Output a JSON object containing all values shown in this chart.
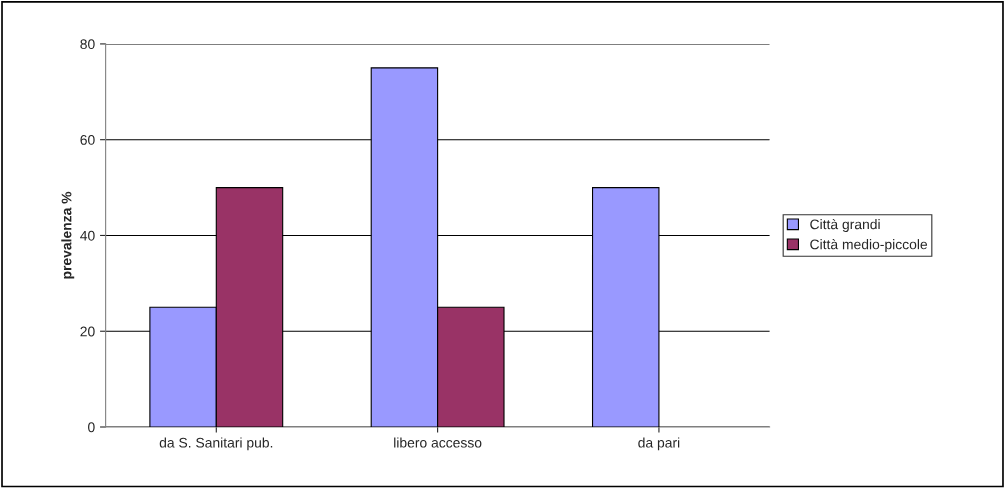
{
  "chart_data": {
    "type": "bar",
    "ylabel": "prevalenza %",
    "categories": [
      "da S. Sanitari pub.",
      "libero accesso",
      "da pari"
    ],
    "series": [
      {
        "name": "Città grandi",
        "color": "#9999ff",
        "values": [
          25,
          75,
          50
        ]
      },
      {
        "name": "Città medio-piccole",
        "color": "#993366",
        "values": [
          50,
          25,
          null
        ]
      }
    ],
    "ylim": [
      0,
      80
    ],
    "yticks": [
      0,
      20,
      40,
      60,
      80
    ],
    "grid": "y",
    "legend": "right"
  }
}
